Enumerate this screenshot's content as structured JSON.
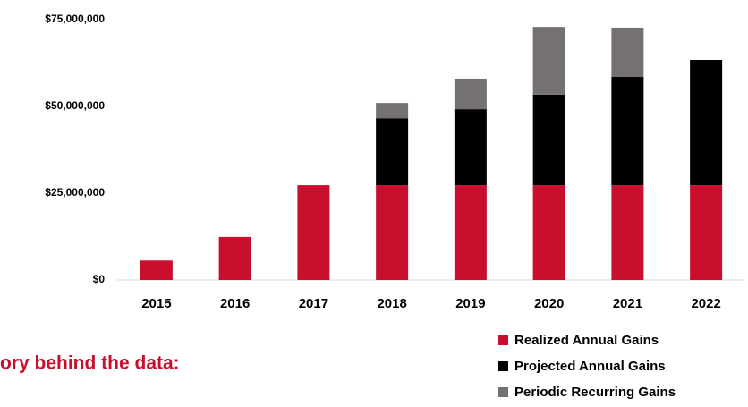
{
  "chart_data": {
    "type": "stacked_bar",
    "annotation": "ory behind the data:",
    "categories": [
      "2015",
      "2016",
      "2017",
      "2018",
      "2019",
      "2020",
      "2021",
      "2022"
    ],
    "series": [
      {
        "name": "Realized Annual Gains",
        "color": "#c8102e",
        "values": [
          5600000,
          12400000,
          27300000,
          27300000,
          27300000,
          27300000,
          27300000,
          27300000
        ]
      },
      {
        "name": "Projected Annual Gains",
        "color": "#000000",
        "values": [
          null,
          null,
          null,
          19300000,
          21900000,
          26100000,
          31200000,
          36100000
        ]
      },
      {
        "name": "Periodic Recurring Gains",
        "color": "#767171",
        "values": [
          null,
          null,
          null,
          4400000,
          8800000,
          19500000,
          14200000,
          null
        ]
      }
    ],
    "ylim": [
      0,
      75000000
    ],
    "yticks": [
      {
        "value": 0,
        "label": "$0"
      },
      {
        "value": 25000000,
        "label": "$25,000,000"
      },
      {
        "value": 50000000,
        "label": "$50,000,000"
      },
      {
        "value": 75000000,
        "label": "$75,000,000"
      }
    ],
    "grid": false
  }
}
